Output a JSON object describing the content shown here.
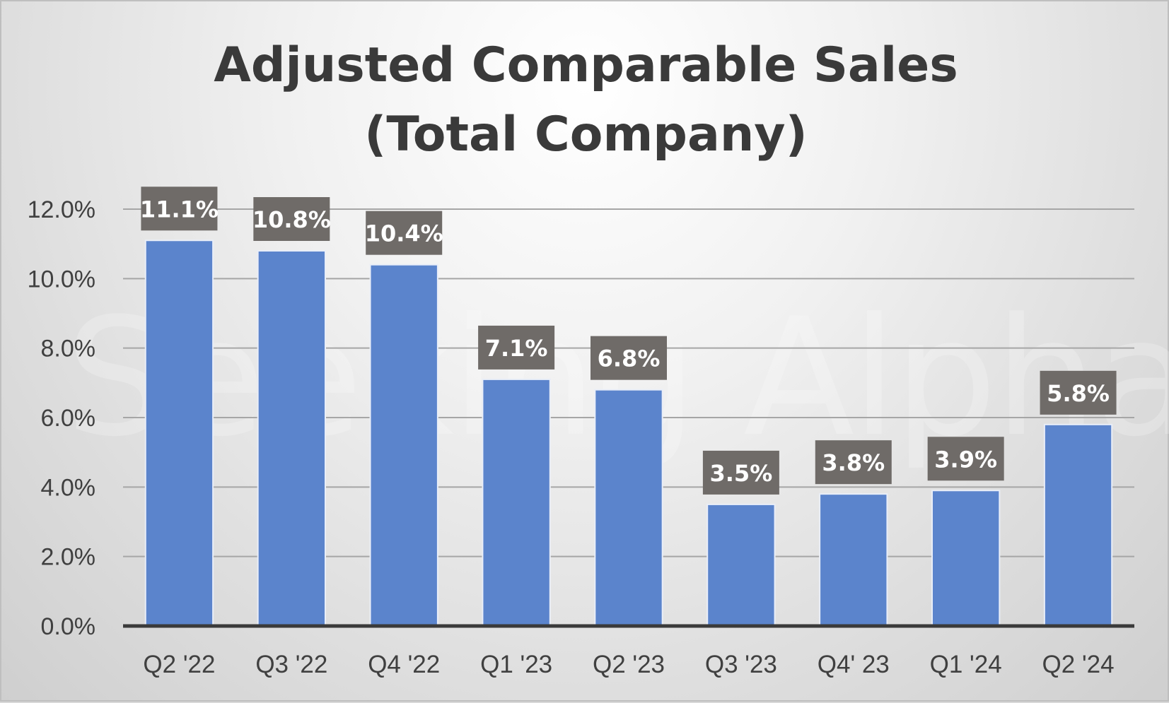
{
  "chart_data": {
    "type": "bar",
    "title_line1": "Adjusted Comparable Sales",
    "title_line2": "(Total Company)",
    "categories": [
      "Q2 '22",
      "Q3 '22",
      "Q4 '22",
      "Q1 '23",
      "Q2 '23",
      "Q3 '23",
      "Q4' 23",
      "Q1 '24",
      "Q2 '24"
    ],
    "values": [
      11.1,
      10.8,
      10.4,
      7.1,
      6.8,
      3.5,
      3.8,
      3.9,
      5.8
    ],
    "data_labels": [
      "11.1%",
      "10.8%",
      "10.4%",
      "7.1%",
      "6.8%",
      "3.5%",
      "3.8%",
      "3.9%",
      "5.8%"
    ],
    "y_ticks": [
      0,
      2,
      4,
      6,
      8,
      10,
      12
    ],
    "y_tick_labels": [
      "0.0%",
      "2.0%",
      "4.0%",
      "6.0%",
      "8.0%",
      "10.0%",
      "12.0%"
    ],
    "ylim": [
      0,
      12
    ],
    "grid": true,
    "legend": "none",
    "xlabel": "",
    "ylabel": ""
  },
  "watermark_text": "Seeking Alpha",
  "colors": {
    "bar": "#5b84cc",
    "label_box": "#6f6b68",
    "label_text": "#ffffff",
    "title": "#3a3a3a",
    "axis_text": "#404040",
    "grid": "#a6a6a6",
    "baseline": "#3a3a3a"
  }
}
